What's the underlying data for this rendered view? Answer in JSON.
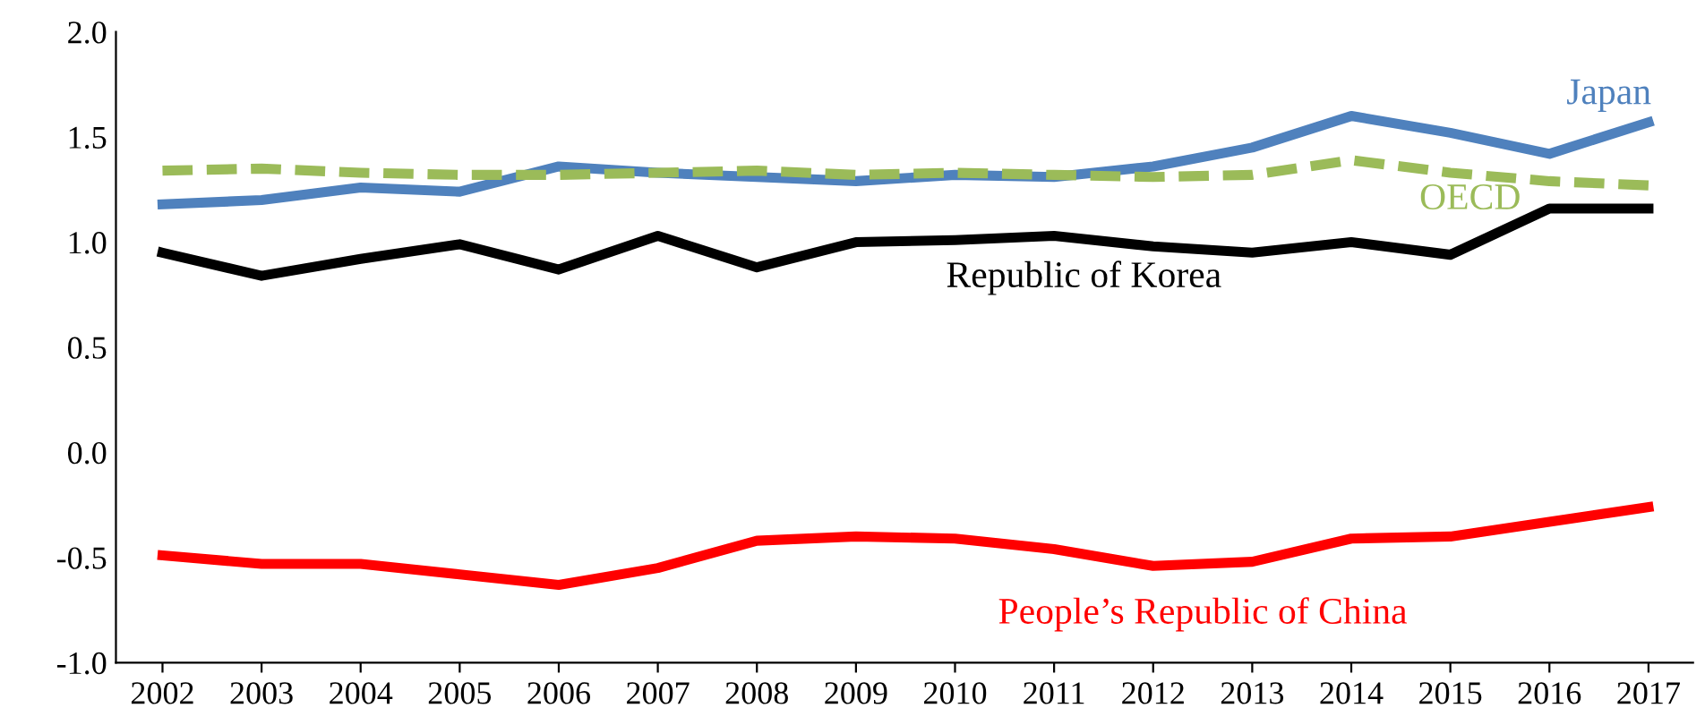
{
  "chart_data": {
    "type": "line",
    "categories": [
      "2002",
      "2003",
      "2004",
      "2005",
      "2006",
      "2007",
      "2008",
      "2009",
      "2010",
      "2011",
      "2012",
      "2013",
      "2014",
      "2015",
      "2016",
      "2017"
    ],
    "series": [
      {
        "name": "Japan",
        "color": "#4f81bd",
        "line_style": "solid",
        "values": [
          1.18,
          1.2,
          1.26,
          1.24,
          1.36,
          1.33,
          1.31,
          1.29,
          1.32,
          1.31,
          1.36,
          1.45,
          1.6,
          1.52,
          1.42,
          1.57
        ]
      },
      {
        "name": "OECD",
        "color": "#9bbb59",
        "line_style": "dashed",
        "values": [
          1.34,
          1.35,
          1.33,
          1.32,
          1.32,
          1.33,
          1.34,
          1.32,
          1.33,
          1.32,
          1.31,
          1.32,
          1.39,
          1.33,
          1.29,
          1.27
        ]
      },
      {
        "name": "Republic of Korea",
        "color": "#000000",
        "line_style": "solid",
        "values": [
          0.95,
          0.84,
          0.92,
          0.99,
          0.87,
          1.03,
          0.88,
          1.0,
          1.01,
          1.03,
          0.98,
          0.95,
          1.0,
          0.94,
          1.16,
          1.16
        ]
      },
      {
        "name": "People’s Republic of China",
        "color": "#ff0000",
        "line_style": "solid",
        "values": [
          -0.49,
          -0.53,
          -0.53,
          -0.58,
          -0.63,
          -0.55,
          -0.42,
          -0.4,
          -0.41,
          -0.46,
          -0.54,
          -0.52,
          -0.41,
          -0.4,
          -0.33,
          -0.26
        ]
      }
    ],
    "ylim": [
      -1.0,
      2.0
    ],
    "yticks": [
      {
        "value": -1.0,
        "label": "-1.0"
      },
      {
        "value": -0.5,
        "label": "-0.5"
      },
      {
        "value": 0.0,
        "label": "0.0"
      },
      {
        "value": 0.5,
        "label": "0.5"
      },
      {
        "value": 1.0,
        "label": "1.0"
      },
      {
        "value": 1.5,
        "label": "1.5"
      },
      {
        "value": 2.0,
        "label": "2.0"
      }
    ],
    "grid": false,
    "legend": false,
    "marker": "none"
  }
}
